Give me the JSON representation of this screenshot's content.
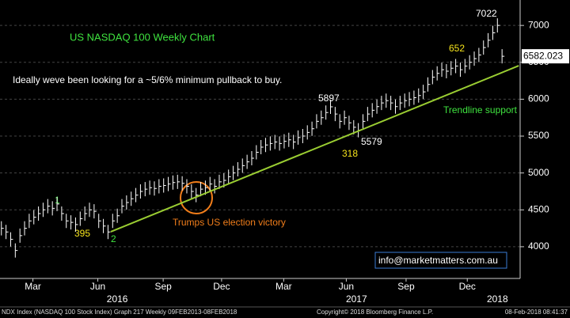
{
  "chart_data": {
    "type": "bar-ticks",
    "title": "US NASDAQ 100 Weekly Chart",
    "subtitle": "Ideally weve been looking for a ~5/6% minimum pullback to buy.",
    "color": "#ffffff",
    "x": [
      0,
      1,
      2,
      3,
      4,
      5,
      6,
      7,
      8,
      9,
      10,
      11,
      12,
      13,
      14,
      15,
      16,
      17,
      18,
      19,
      20,
      21,
      22,
      23,
      24,
      25,
      26,
      27,
      28,
      29,
      30,
      31,
      32,
      33,
      34,
      35,
      36,
      37,
      38,
      39,
      40,
      41,
      42,
      43,
      44,
      45,
      46,
      47,
      48,
      49,
      50,
      51,
      52,
      53,
      54,
      55,
      56,
      57,
      58,
      59,
      60,
      61,
      62,
      63,
      64,
      65,
      66,
      67,
      68,
      69,
      70,
      71,
      72,
      73,
      74,
      75,
      76,
      77,
      78,
      79,
      80,
      81,
      82,
      83,
      84,
      85,
      86,
      87,
      88,
      89,
      90,
      91,
      92,
      93,
      94,
      95,
      96,
      97,
      98,
      99,
      100,
      101,
      102,
      103,
      104,
      105,
      106,
      107,
      108
    ],
    "values": [
      4250,
      4200,
      4100,
      3950,
      4150,
      4250,
      4350,
      4400,
      4450,
      4500,
      4550,
      4520,
      4580,
      4450,
      4350,
      4330,
      4300,
      4380,
      4450,
      4500,
      4480,
      4350,
      4280,
      4200,
      4350,
      4420,
      4550,
      4600,
      4650,
      4700,
      4750,
      4780,
      4800,
      4790,
      4820,
      4830,
      4850,
      4870,
      4880,
      4860,
      4820,
      4750,
      4700,
      4780,
      4800,
      4850,
      4820,
      4880,
      4900,
      4950,
      5000,
      5050,
      5100,
      5150,
      5200,
      5280,
      5350,
      5380,
      5400,
      5420,
      5400,
      5430,
      5450,
      5420,
      5480,
      5500,
      5550,
      5600,
      5700,
      5750,
      5820,
      5897,
      5800,
      5700,
      5750,
      5680,
      5620,
      5579,
      5700,
      5800,
      5850,
      5900,
      5950,
      5980,
      5950,
      5900,
      5950,
      5980,
      6000,
      6020,
      6050,
      6100,
      6200,
      6300,
      6350,
      6400,
      6380,
      6420,
      6450,
      6400,
      6450,
      6500,
      6550,
      6600,
      6700,
      6800,
      6900,
      7000,
      6582.023
    ],
    "trendline": {
      "name": "Trendline support",
      "color": "#9acd32",
      "x": [
        23.6,
        111.6
      ],
      "values": [
        4203,
        6454
      ]
    },
    "xlim": [
      -0.3,
      111.9
    ],
    "xticks": [
      {
        "value": 6.8,
        "label": "Mar"
      },
      {
        "value": 20.8,
        "label": "Jun"
      },
      {
        "value": 34.9,
        "label": "Sep"
      },
      {
        "value": 47.5,
        "label": "Dec"
      },
      {
        "value": 60.9,
        "label": "Mar"
      },
      {
        "value": 74.4,
        "label": "Jun"
      },
      {
        "value": 87.3,
        "label": "Sep"
      },
      {
        "value": 100.5,
        "label": "Dec"
      }
    ],
    "year_ticks": [
      {
        "value": 25,
        "label": "2016"
      },
      {
        "value": 76.6,
        "label": "2017"
      },
      {
        "value": 107,
        "label": "2018"
      }
    ],
    "ylim": [
      3570,
      7345
    ],
    "yticks": [
      4000,
      4500,
      5000,
      5500,
      6000,
      6500,
      7000
    ],
    "grid": true,
    "last_price": "6582.023",
    "annotations": {
      "wave1": "1",
      "n395": "395",
      "wave2": "2",
      "election": "Trumps US election victory",
      "n5897": "5897",
      "n318": "318",
      "n5579": "5579",
      "n652": "652",
      "n7022": "7022"
    },
    "contact": "info@marketmatters.com.au",
    "footer": {
      "left": "NDX Index (NASDAQ 100 Stock Index) Graph 217  Weekly 09FEB2013-08FEB2018",
      "center": "Copyright© 2018 Bloomberg Finance L.P.",
      "right": "08-Feb-2018 08:41:37"
    }
  }
}
